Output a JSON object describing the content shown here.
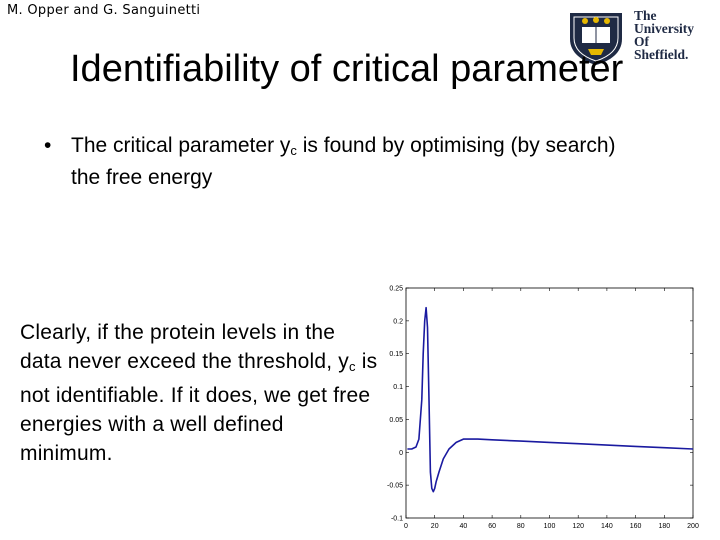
{
  "header": {
    "authors": "M. Opper and G. Sanguinetti"
  },
  "logo": {
    "line1": "The",
    "line2": "University",
    "line3": "Of",
    "line4": "Sheffield."
  },
  "slide": {
    "title": "Identifiability of critical parameter",
    "bullet": {
      "marker": "•",
      "before": "The critical parameter y",
      "sub": "c",
      "after": " is found by optimising (by search) the free energy"
    },
    "paragraph": {
      "before": "Clearly, if the protein levels in the data never exceed the threshold, y",
      "sub": "c",
      "after": " is not identifiable. If it does, we get free energies with a well defined minimum."
    }
  },
  "colors": {
    "line": "#1a1aa0",
    "logo_blue": "#1f2a44",
    "logo_yellow": "#e6b800"
  },
  "chart_data": {
    "type": "line",
    "title": "",
    "xlabel": "",
    "ylabel": "",
    "xlim": [
      0,
      200
    ],
    "ylim": [
      -0.1,
      0.25
    ],
    "xticks": [
      0,
      20,
      40,
      60,
      80,
      100,
      120,
      140,
      160,
      180,
      200
    ],
    "xtick_labels": [
      "0",
      "20",
      "40",
      "60",
      "80",
      "100",
      "120",
      "140",
      "160",
      "180",
      "200"
    ],
    "yticks": [
      -0.1,
      -0.05,
      0,
      0.05,
      0.1,
      0.15,
      0.2,
      0.25
    ],
    "ytick_labels": [
      "-0.1",
      "-0.05",
      "0",
      "0.05",
      "0.1",
      "0.15",
      "0.2",
      "0.25"
    ],
    "grid": false,
    "series": [
      {
        "x": [
          1,
          4,
          7,
          9,
          11,
          12,
          13,
          14,
          15,
          16,
          17,
          18,
          19,
          20,
          21,
          23,
          26,
          30,
          35,
          40,
          50,
          60,
          80,
          100,
          120,
          140,
          160,
          180,
          200
        ],
        "y": [
          0.005,
          0.005,
          0.008,
          0.02,
          0.08,
          0.15,
          0.2,
          0.22,
          0.19,
          0.08,
          -0.03,
          -0.055,
          -0.06,
          -0.055,
          -0.045,
          -0.03,
          -0.01,
          0.005,
          0.015,
          0.02,
          0.02,
          0.019,
          0.017,
          0.015,
          0.013,
          0.011,
          0.009,
          0.007,
          0.005
        ]
      }
    ]
  }
}
